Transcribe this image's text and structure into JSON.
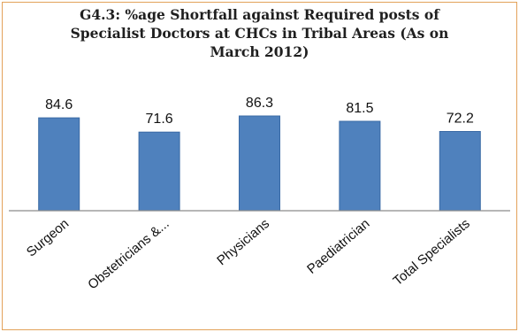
{
  "chart_data": {
    "type": "bar",
    "title_lines": [
      "G4.3:  %age Shortfall against Required posts of",
      "Specialist Doctors at CHCs in Tribal Areas (As on",
      "March 2012)"
    ],
    "categories": [
      "Surgeon",
      "Obstetricians &...",
      "Physicians",
      "Paediatrician",
      "Total Specialists"
    ],
    "values": [
      84.6,
      71.6,
      86.3,
      81.5,
      72.2
    ],
    "value_labels": [
      "84.6",
      "71.6",
      "86.3",
      "81.5",
      "72.2"
    ],
    "xlabel": "",
    "ylabel": "",
    "ylim": [
      0,
      86.3
    ],
    "grid": false,
    "legend": "none",
    "bar_color": "#4f81bd",
    "bar_edge_color": "#3a6aa5",
    "axis_color": "#8c8c8c"
  }
}
